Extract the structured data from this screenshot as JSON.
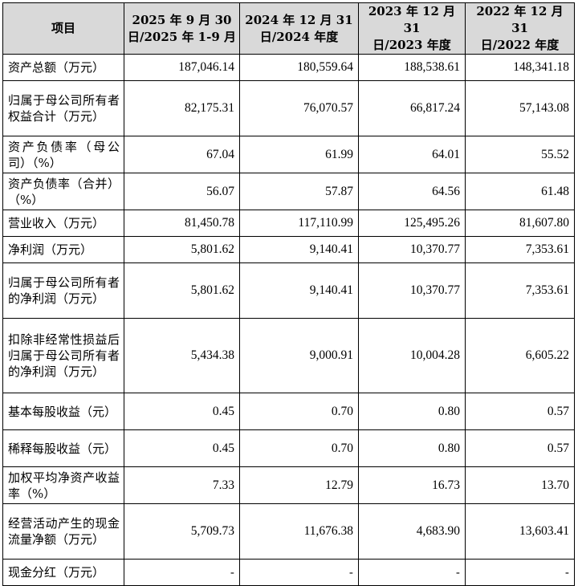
{
  "headers": [
    {
      "line1": "项目",
      "line2": ""
    },
    {
      "line1": "2025 年 9 月 30",
      "line2": "日/2025 年 1-9 月"
    },
    {
      "line1": "2024 年 12 月 31",
      "line2": "日/2024 年度"
    },
    {
      "line1": "2023 年 12 月 31",
      "line2": "日/2023 年度"
    },
    {
      "line1": "2022 年 12 月 31",
      "line2": "日/2022 年度"
    }
  ],
  "rows": [
    {
      "item": "资产总额（万元）",
      "values": [
        "187,046.14",
        "180,559.64",
        "188,538.61",
        "148,341.18"
      ]
    },
    {
      "item": "归属于母公司所有者权益合计（万元）",
      "values": [
        "82,175.31",
        "76,070.57",
        "66,817.24",
        "57,143.08"
      ]
    },
    {
      "item": "资产负债率（母公司）（%）",
      "values": [
        "67.04",
        "61.99",
        "64.01",
        "55.52"
      ]
    },
    {
      "item": "资产负债率（合并）（%）",
      "values": [
        "56.07",
        "57.87",
        "64.56",
        "61.48"
      ]
    },
    {
      "item": "营业收入（万元）",
      "values": [
        "81,450.78",
        "117,110.99",
        "125,495.26",
        "81,607.80"
      ]
    },
    {
      "item": "净利润（万元）",
      "values": [
        "5,801.62",
        "9,140.41",
        "10,370.77",
        "7,353.61"
      ]
    },
    {
      "item": "归属于母公司所有者的净利润（万元）",
      "values": [
        "5,801.62",
        "9,140.41",
        "10,370.77",
        "7,353.61"
      ]
    },
    {
      "item": "扣除非经常性损益后归属于母公司所有者的净利润（万元）",
      "values": [
        "5,434.38",
        "9,000.91",
        "10,004.28",
        "6,605.22"
      ]
    },
    {
      "item": "基本每股收益（元）",
      "values": [
        "0.45",
        "0.70",
        "0.80",
        "0.57"
      ]
    },
    {
      "item": "稀释每股收益（元）",
      "values": [
        "0.45",
        "0.70",
        "0.80",
        "0.57"
      ]
    },
    {
      "item": "加权平均净资产收益率（%）",
      "values": [
        "7.33",
        "12.79",
        "16.73",
        "13.70"
      ]
    },
    {
      "item": "经营活动产生的现金流量净额（万元）",
      "values": [
        "5,709.73",
        "11,676.38",
        "4,683.90",
        "13,603.41"
      ]
    },
    {
      "item": "现金分红（万元）",
      "values": [
        "-",
        "-",
        "-",
        "-"
      ]
    }
  ]
}
